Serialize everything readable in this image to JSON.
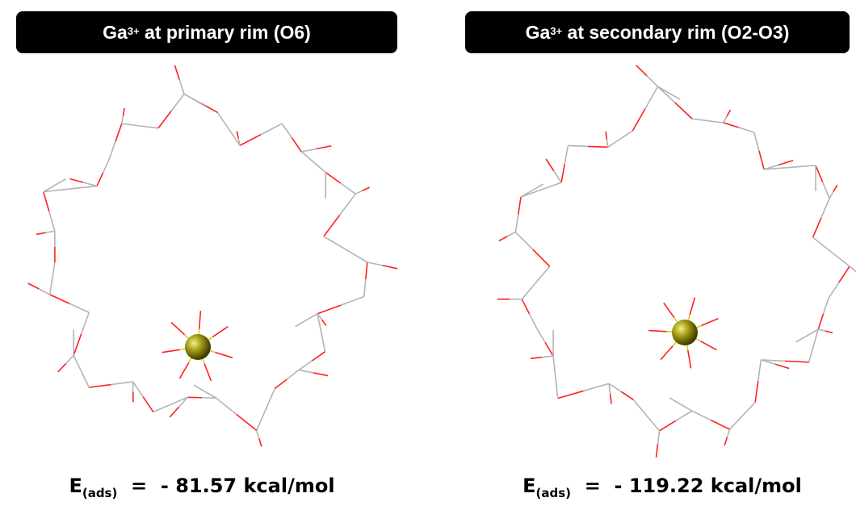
{
  "panels": [
    {
      "title": {
        "main": "Ga",
        "sup": "3+",
        "rest": " at primary rim (O6)"
      },
      "energy": {
        "symbol": "E",
        "sub": "(ads)",
        "rest": "  =  - 81.57 kcal/mol"
      }
    },
    {
      "title": {
        "main": "Ga",
        "sup": "3+",
        "rest": " at secondary rim (O2-O3)"
      },
      "energy": {
        "symbol": "E",
        "sub": "(ads)",
        "rest": "  =  - 119.22 kcal/mol"
      }
    }
  ]
}
